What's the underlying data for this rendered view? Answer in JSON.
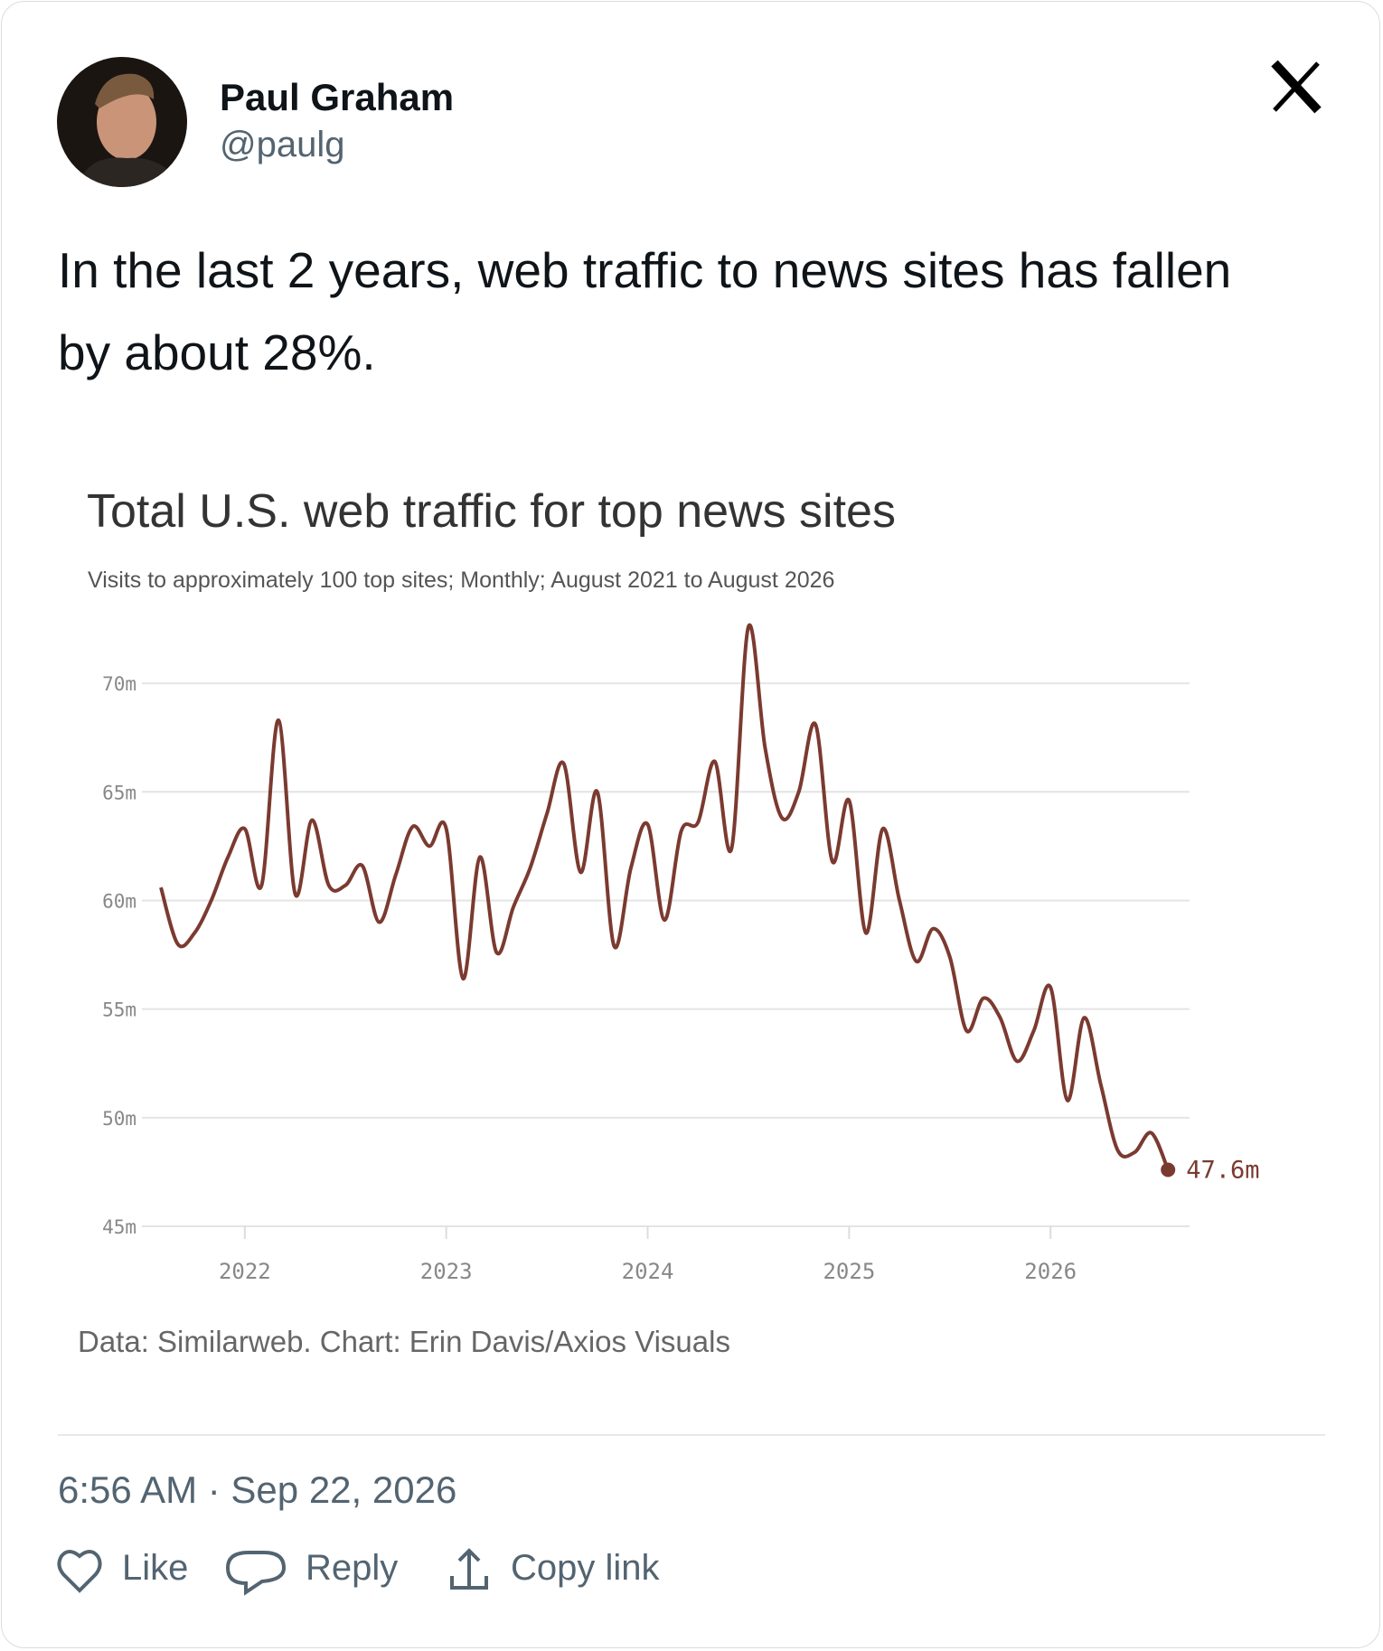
{
  "author": {
    "name": "Paul Graham",
    "handle": "@paulg"
  },
  "text": "In the last 2 years, web traffic to news sites has fallen by about 28%.",
  "chart_data": {
    "type": "line",
    "title": "Total U.S. web traffic for top news sites",
    "subtitle": "Visits to approximately 100 top sites; Monthly; August 2021 to August 2026",
    "x": [
      "2021-08",
      "2021-09",
      "2021-10",
      "2021-11",
      "2021-12",
      "2022-01",
      "2022-02",
      "2022-03",
      "2022-04",
      "2022-05",
      "2022-06",
      "2022-07",
      "2022-08",
      "2022-09",
      "2022-10",
      "2022-11",
      "2022-12",
      "2023-01",
      "2023-02",
      "2023-03",
      "2023-04",
      "2023-05",
      "2023-06",
      "2023-07",
      "2023-08",
      "2023-09",
      "2023-10",
      "2023-11",
      "2023-12",
      "2024-01",
      "2024-02",
      "2024-03",
      "2024-04",
      "2024-05",
      "2024-06",
      "2024-07",
      "2024-08",
      "2024-09",
      "2024-10",
      "2024-11",
      "2024-12",
      "2025-01",
      "2025-02",
      "2025-03",
      "2025-04",
      "2025-05",
      "2025-06",
      "2025-07",
      "2025-08",
      "2025-09",
      "2025-10",
      "2025-11",
      "2025-12",
      "2026-01",
      "2026-02",
      "2026-03",
      "2026-04",
      "2026-05",
      "2026-06",
      "2026-07",
      "2026-08"
    ],
    "series": [
      {
        "name": "Visits",
        "color": "#7b3a30",
        "values": [
          60.6,
          58.0,
          58.5,
          60.0,
          62.0,
          63.3,
          60.7,
          68.3,
          60.3,
          63.7,
          60.7,
          60.7,
          61.6,
          59.0,
          61.2,
          63.4,
          62.5,
          63.3,
          56.4,
          62.0,
          57.6,
          59.7,
          61.5,
          64.0,
          66.3,
          61.3,
          65.0,
          57.9,
          61.5,
          63.5,
          59.1,
          63.2,
          63.6,
          66.4,
          62.4,
          72.6,
          67.0,
          63.8,
          65.0,
          68.1,
          61.8,
          64.6,
          58.5,
          63.3,
          60.0,
          57.2,
          58.7,
          57.4,
          54.0,
          55.5,
          54.6,
          52.6,
          54.0,
          56.0,
          50.8,
          54.6,
          51.5,
          48.5,
          48.4,
          49.3,
          47.6
        ]
      }
    ],
    "end_label": {
      "value": 47.6,
      "label": "47.6m"
    },
    "ylim": [
      45,
      73
    ],
    "yticks": [
      {
        "value": 45,
        "label": "45m"
      },
      {
        "value": 50,
        "label": "50m"
      },
      {
        "value": 55,
        "label": "55m"
      },
      {
        "value": 60,
        "label": "60m"
      },
      {
        "value": 65,
        "label": "65m"
      },
      {
        "value": 70,
        "label": "70m"
      }
    ],
    "xticks": [
      2022,
      2023,
      2024,
      2025,
      2026
    ],
    "grid": true,
    "source": "Data: Similarweb. Chart: Erin Davis/Axios Visuals"
  },
  "timestamp": "6:56 AM · Sep 22, 2026",
  "actions": [
    "Like",
    "Reply",
    "Copy link"
  ]
}
